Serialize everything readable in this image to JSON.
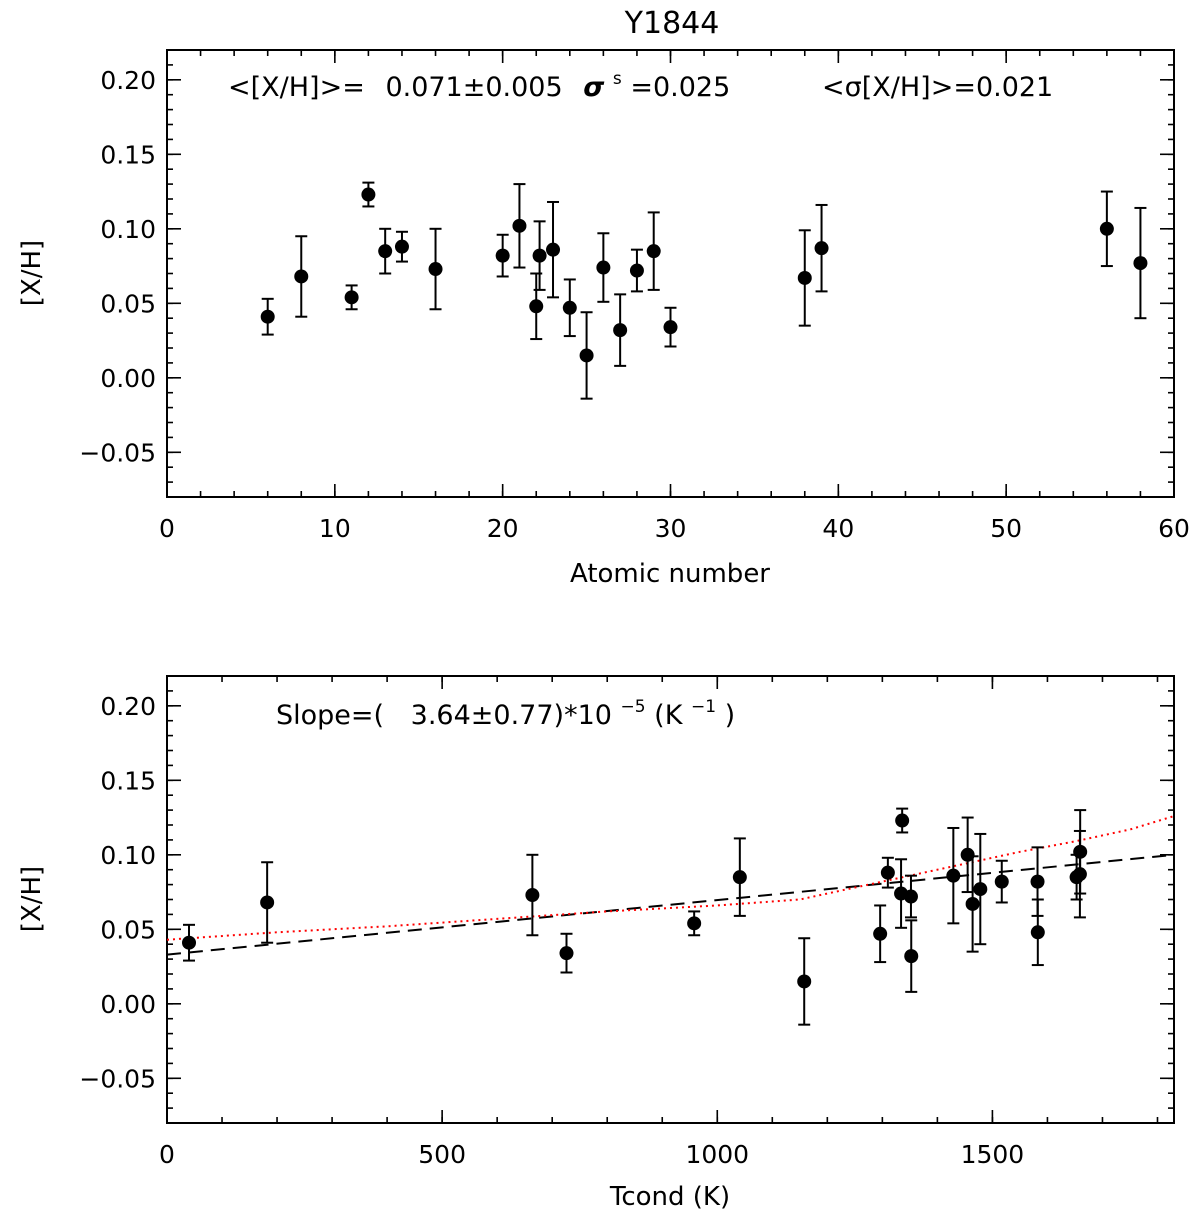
{
  "figure_title": "Y1844",
  "chart_data": [
    {
      "type": "scatter",
      "title": "Y1844",
      "xlabel": "Atomic number",
      "ylabel": "[X/H]",
      "xlim": [
        0,
        60
      ],
      "ylim": [
        -0.08,
        0.22
      ],
      "xticks": [
        0,
        10,
        20,
        30,
        40,
        50,
        60
      ],
      "xtick_labels": [
        "0",
        "10",
        "20",
        "30",
        "40",
        "50",
        "60"
      ],
      "yticks": [
        -0.05,
        0.0,
        0.05,
        0.1,
        0.15,
        0.2
      ],
      "ytick_labels": [
        "−0.05",
        "0.00",
        "0.05",
        "0.10",
        "0.15",
        "0.20"
      ],
      "annotation": {
        "mean_label": "<[X/H]>=",
        "mean_value": "0.071±0.005",
        "sigma_s_label": "σ",
        "sigma_s_sup": "s",
        "sigma_s_value": "=0.025",
        "mean_sigma_label": "<σ[X/H]>=0.021"
      },
      "points": [
        {
          "x": 6,
          "y": 0.041,
          "err": 0.012
        },
        {
          "x": 8,
          "y": 0.068,
          "err": 0.027
        },
        {
          "x": 11,
          "y": 0.054,
          "err": 0.008
        },
        {
          "x": 12,
          "y": 0.123,
          "err": 0.008
        },
        {
          "x": 13,
          "y": 0.085,
          "err": 0.015
        },
        {
          "x": 14,
          "y": 0.088,
          "err": 0.01
        },
        {
          "x": 16,
          "y": 0.073,
          "err": 0.027
        },
        {
          "x": 20,
          "y": 0.082,
          "err": 0.014
        },
        {
          "x": 21,
          "y": 0.102,
          "err": 0.028
        },
        {
          "x": 22,
          "y": 0.048,
          "err": 0.022
        },
        {
          "x": 22.2,
          "y": 0.082,
          "err": 0.023
        },
        {
          "x": 23,
          "y": 0.086,
          "err": 0.032
        },
        {
          "x": 24,
          "y": 0.047,
          "err": 0.019
        },
        {
          "x": 25,
          "y": 0.015,
          "err": 0.029
        },
        {
          "x": 26,
          "y": 0.074,
          "err": 0.023
        },
        {
          "x": 27,
          "y": 0.032,
          "err": 0.024
        },
        {
          "x": 28,
          "y": 0.072,
          "err": 0.014
        },
        {
          "x": 29,
          "y": 0.085,
          "err": 0.026
        },
        {
          "x": 30,
          "y": 0.034,
          "err": 0.013
        },
        {
          "x": 38,
          "y": 0.067,
          "err": 0.032
        },
        {
          "x": 39,
          "y": 0.087,
          "err": 0.029
        },
        {
          "x": 56,
          "y": 0.1,
          "err": 0.025
        },
        {
          "x": 58,
          "y": 0.077,
          "err": 0.037
        }
      ]
    },
    {
      "type": "scatter",
      "title": "",
      "xlabel": "Tcond (K)",
      "ylabel": "[X/H]",
      "xlim": [
        0,
        1830
      ],
      "ylim": [
        -0.08,
        0.22
      ],
      "xticks": [
        0,
        500,
        1000,
        1500
      ],
      "xtick_labels": [
        "0",
        "500",
        "1000",
        "1500"
      ],
      "yticks": [
        -0.05,
        0.0,
        0.05,
        0.1,
        0.15,
        0.2
      ],
      "ytick_labels": [
        "−0.05",
        "0.00",
        "0.05",
        "0.10",
        "0.15",
        "0.20"
      ],
      "annotation": {
        "slope_prefix": "Slope=(",
        "slope_value": "3.64±0.77)*10",
        "slope_exp": "−5",
        "slope_unit_open": " (K",
        "slope_unit_exp": "−1",
        "slope_unit_close": ")"
      },
      "points": [
        {
          "x": 40,
          "y": 0.041,
          "err": 0.012
        },
        {
          "x": 182,
          "y": 0.068,
          "err": 0.027
        },
        {
          "x": 664,
          "y": 0.073,
          "err": 0.027
        },
        {
          "x": 726,
          "y": 0.034,
          "err": 0.013
        },
        {
          "x": 958,
          "y": 0.054,
          "err": 0.008
        },
        {
          "x": 1041,
          "y": 0.085,
          "err": 0.026
        },
        {
          "x": 1158,
          "y": 0.015,
          "err": 0.029
        },
        {
          "x": 1296,
          "y": 0.047,
          "err": 0.019
        },
        {
          "x": 1310,
          "y": 0.088,
          "err": 0.01
        },
        {
          "x": 1334,
          "y": 0.074,
          "err": 0.023
        },
        {
          "x": 1336,
          "y": 0.123,
          "err": 0.008
        },
        {
          "x": 1352,
          "y": 0.072,
          "err": 0.014
        },
        {
          "x": 1352.5,
          "y": 0.032,
          "err": 0.024
        },
        {
          "x": 1429,
          "y": 0.086,
          "err": 0.032
        },
        {
          "x": 1455,
          "y": 0.1,
          "err": 0.025
        },
        {
          "x": 1464,
          "y": 0.067,
          "err": 0.032
        },
        {
          "x": 1478,
          "y": 0.077,
          "err": 0.037
        },
        {
          "x": 1517,
          "y": 0.082,
          "err": 0.014
        },
        {
          "x": 1582,
          "y": 0.082,
          "err": 0.023
        },
        {
          "x": 1582.5,
          "y": 0.048,
          "err": 0.022
        },
        {
          "x": 1653,
          "y": 0.085,
          "err": 0.015
        },
        {
          "x": 1659,
          "y": 0.087,
          "err": 0.029
        },
        {
          "x": 1659.5,
          "y": 0.102,
          "err": 0.028
        }
      ],
      "fit_line": {
        "style": "dashed",
        "color": "#000000",
        "x": [
          0,
          1830
        ],
        "y": [
          0.033,
          0.1
        ]
      },
      "trend_curve": {
        "style": "dotted",
        "color": "#ff0000",
        "x": [
          0,
          200,
          400,
          600,
          800,
          1000,
          1150,
          1250,
          1350,
          1450,
          1550,
          1650,
          1750,
          1830
        ],
        "y": [
          0.043,
          0.048,
          0.052,
          0.057,
          0.062,
          0.066,
          0.07,
          0.078,
          0.086,
          0.094,
          0.102,
          0.109,
          0.117,
          0.126
        ]
      }
    }
  ]
}
